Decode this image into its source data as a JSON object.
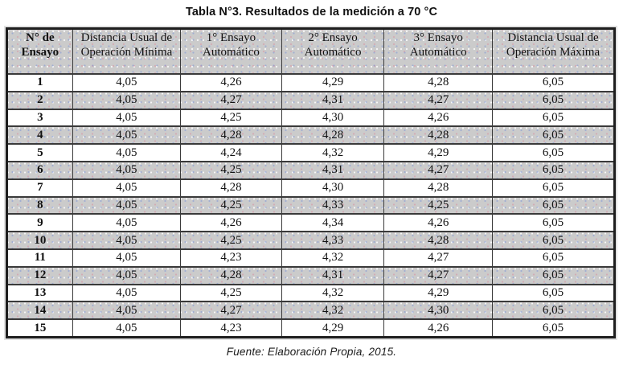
{
  "title": "Tabla N°3. Resultados de la medición a 70 °C",
  "footer": "Fuente: Elaboración Propia, 2015.",
  "colors": {
    "fill_gray": "#cbcbcb",
    "border_dark": "#1e1e1e",
    "border_inner": "#3a3a3a",
    "text": "#121212"
  },
  "table": {
    "headers": [
      "N° de Ensayo",
      "Distancia Usual de Operación Mínima",
      "1° Ensayo Automático",
      "2° Ensayo Automático",
      "3° Ensayo Automático",
      "Distancia Usual de Operación Máxima"
    ],
    "rows": [
      [
        "1",
        "4,05",
        "4,26",
        "4,29",
        "4,28",
        "6,05"
      ],
      [
        "2",
        "4,05",
        "4,27",
        "4,31",
        "4,27",
        "6,05"
      ],
      [
        "3",
        "4,05",
        "4,25",
        "4,30",
        "4,26",
        "6,05"
      ],
      [
        "4",
        "4,05",
        "4,28",
        "4,28",
        "4,28",
        "6,05"
      ],
      [
        "5",
        "4,05",
        "4,24",
        "4,32",
        "4,29",
        "6,05"
      ],
      [
        "6",
        "4,05",
        "4,25",
        "4,31",
        "4,27",
        "6,05"
      ],
      [
        "7",
        "4,05",
        "4,28",
        "4,30",
        "4,28",
        "6,05"
      ],
      [
        "8",
        "4,05",
        "4,25",
        "4,33",
        "4,25",
        "6,05"
      ],
      [
        "9",
        "4,05",
        "4,26",
        "4,34",
        "4,26",
        "6,05"
      ],
      [
        "10",
        "4,05",
        "4,25",
        "4,33",
        "4,28",
        "6,05"
      ],
      [
        "11",
        "4,05",
        "4,23",
        "4,32",
        "4,27",
        "6,05"
      ],
      [
        "12",
        "4,05",
        "4,28",
        "4,31",
        "4,27",
        "6,05"
      ],
      [
        "13",
        "4,05",
        "4,25",
        "4,32",
        "4,29",
        "6,05"
      ],
      [
        "14",
        "4,05",
        "4,27",
        "4,32",
        "4,30",
        "6,05"
      ],
      [
        "15",
        "4,05",
        "4,23",
        "4,29",
        "4,26",
        "6,05"
      ]
    ]
  }
}
